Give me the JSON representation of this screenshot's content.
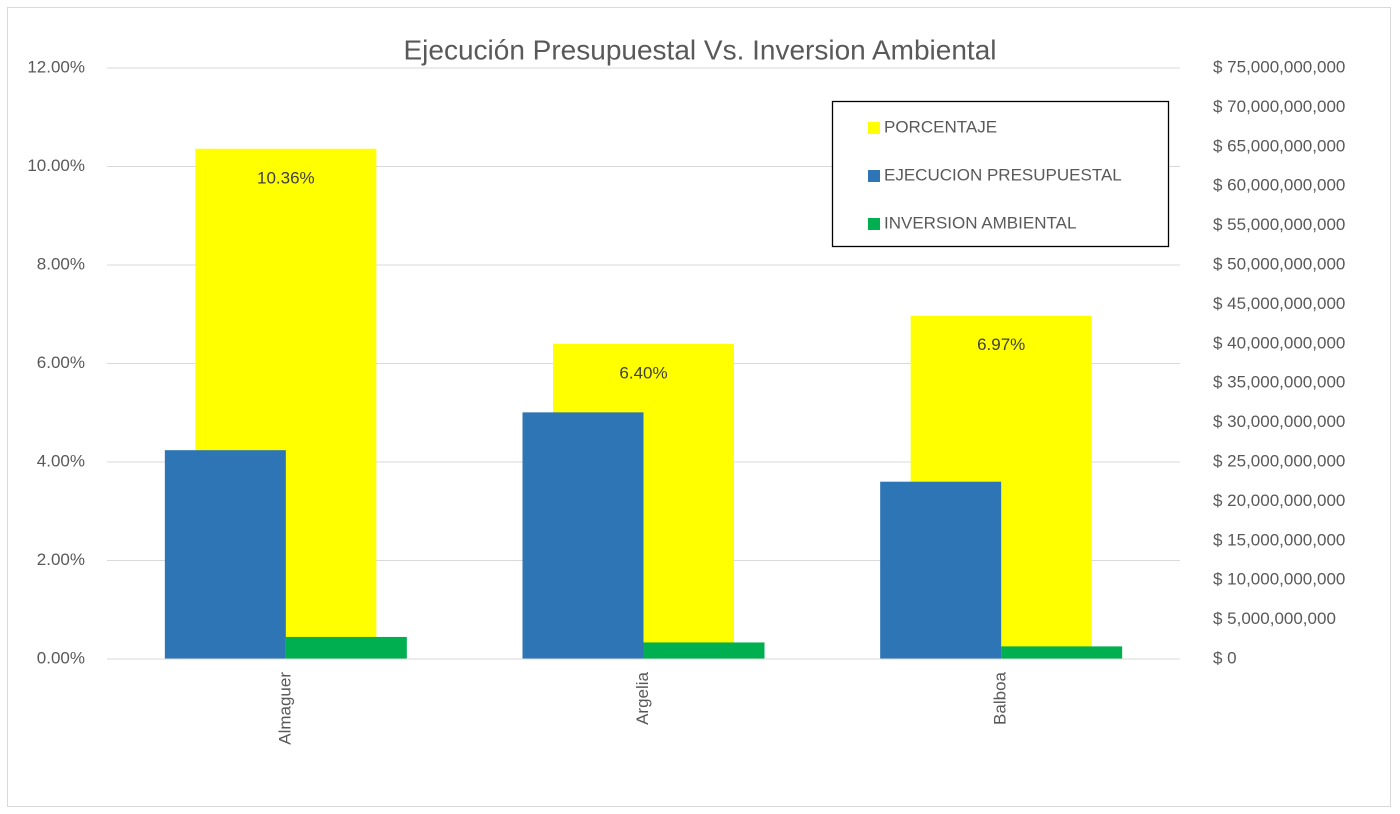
{
  "chart_data": {
    "type": "bar",
    "title": "Ejecución Presupuestal Vs. Inversion Ambiental",
    "categories": [
      "Almaguer",
      "Argelia",
      "Balboa"
    ],
    "series": [
      {
        "name": "PORCENTAJE",
        "color": "#ffff00",
        "values": [
          10.36,
          6.4,
          6.97
        ],
        "value_labels": [
          "10.36%",
          "6.40%",
          "6.97%"
        ]
      },
      {
        "name": "EJECUCION PRESUPUESTAL",
        "color": "#2e75b6",
        "axis": "y2",
        "values": [
          26500000000,
          31300000000,
          22500000000
        ]
      },
      {
        "name": "INVERSION AMBIENTAL",
        "color": "#00b050",
        "axis": "y2",
        "values": [
          2800000000,
          2100000000,
          1600000000
        ]
      }
    ],
    "ylim": [
      0,
      12
    ],
    "yticks": [
      {
        "value": 0,
        "label": "0.00%"
      },
      {
        "value": 2,
        "label": "2.00%"
      },
      {
        "value": 4,
        "label": "4.00%"
      },
      {
        "value": 6,
        "label": "6.00%"
      },
      {
        "value": 8,
        "label": "8.00%"
      },
      {
        "value": 10,
        "label": "10.00%"
      },
      {
        "value": 12,
        "label": "12.00%"
      }
    ],
    "y2lim": [
      0,
      75000000000
    ],
    "y2ticks": [
      {
        "value": 0,
        "label": "$ 0"
      },
      {
        "value": 5000000000,
        "label": "$ 5,000,000,000"
      },
      {
        "value": 10000000000,
        "label": "$ 10,000,000,000"
      },
      {
        "value": 15000000000,
        "label": "$ 15,000,000,000"
      },
      {
        "value": 20000000000,
        "label": "$ 20,000,000,000"
      },
      {
        "value": 25000000000,
        "label": "$ 25,000,000,000"
      },
      {
        "value": 30000000000,
        "label": "$ 30,000,000,000"
      },
      {
        "value": 35000000000,
        "label": "$ 35,000,000,000"
      },
      {
        "value": 40000000000,
        "label": "$ 40,000,000,000"
      },
      {
        "value": 45000000000,
        "label": "$ 45,000,000,000"
      },
      {
        "value": 50000000000,
        "label": "$ 50,000,000,000"
      },
      {
        "value": 55000000000,
        "label": "$ 55,000,000,000"
      },
      {
        "value": 60000000000,
        "label": "$ 60,000,000,000"
      },
      {
        "value": 65000000000,
        "label": "$ 65,000,000,000"
      },
      {
        "value": 70000000000,
        "label": "$ 70,000,000,000"
      },
      {
        "value": 75000000000,
        "label": "$ 75,000,000,000"
      }
    ],
    "grid": true,
    "legend": "top-right"
  }
}
